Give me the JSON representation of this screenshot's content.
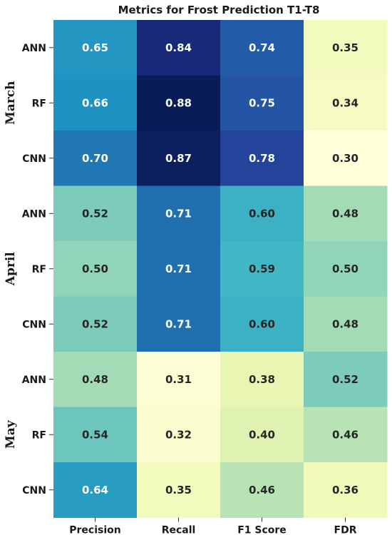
{
  "chart_data": {
    "type": "heatmap",
    "title": "Metrics for Frost Prediction T1-T8",
    "columns": [
      "Precision",
      "Recall",
      "F1 Score",
      "FDR"
    ],
    "groups": [
      {
        "name": "March",
        "rows": [
          "ANN",
          "RF",
          "CNN"
        ]
      },
      {
        "name": "April",
        "rows": [
          "ANN",
          "RF",
          "CNN"
        ]
      },
      {
        "name": "May",
        "rows": [
          "ANN",
          "RF",
          "CNN"
        ]
      }
    ],
    "values": [
      [
        0.65,
        0.84,
        0.74,
        0.35
      ],
      [
        0.66,
        0.88,
        0.75,
        0.34
      ],
      [
        0.7,
        0.87,
        0.78,
        0.3
      ],
      [
        0.52,
        0.71,
        0.6,
        0.48
      ],
      [
        0.5,
        0.71,
        0.59,
        0.5
      ],
      [
        0.52,
        0.71,
        0.6,
        0.48
      ],
      [
        0.48,
        0.31,
        0.38,
        0.52
      ],
      [
        0.54,
        0.32,
        0.4,
        0.46
      ],
      [
        0.64,
        0.35,
        0.46,
        0.36
      ]
    ],
    "value_labels": [
      [
        "0.65",
        "0.84",
        "0.74",
        "0.35"
      ],
      [
        "0.66",
        "0.88",
        "0.75",
        "0.34"
      ],
      [
        "0.70",
        "0.87",
        "0.78",
        "0.30"
      ],
      [
        "0.52",
        "0.71",
        "0.60",
        "0.48"
      ],
      [
        "0.50",
        "0.71",
        "0.59",
        "0.50"
      ],
      [
        "0.52",
        "0.71",
        "0.60",
        "0.48"
      ],
      [
        "0.48",
        "0.31",
        "0.38",
        "0.52"
      ],
      [
        "0.54",
        "0.32",
        "0.40",
        "0.46"
      ],
      [
        "0.64",
        "0.35",
        "0.46",
        "0.36"
      ]
    ],
    "colormap": "YlGnBu",
    "value_range": [
      0.3,
      0.88
    ],
    "colorbar": false,
    "grid": false,
    "legend": "none"
  }
}
